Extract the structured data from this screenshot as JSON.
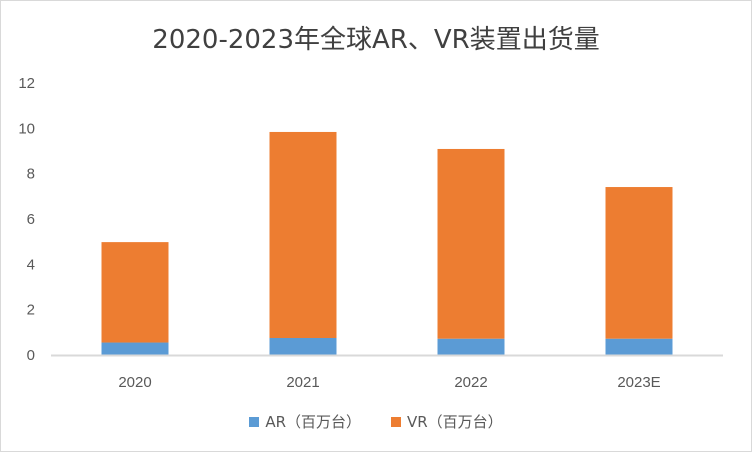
{
  "chart_data": {
    "type": "bar",
    "stacked": true,
    "title": "2020-2023年全球AR、VR装置出货量",
    "categories": [
      "2020",
      "2021",
      "2022",
      "2023E"
    ],
    "series": [
      {
        "name": "AR（百万台）",
        "values": [
          0.55,
          0.75,
          0.72,
          0.72
        ],
        "color": "#5b9bd5"
      },
      {
        "name": "VR（百万台）",
        "values": [
          4.43,
          9.09,
          8.37,
          6.69
        ],
        "color": "#ed7d31"
      }
    ],
    "yticks": [
      "0",
      "2",
      "4",
      "6",
      "8",
      "10",
      "12"
    ],
    "ylim": [
      0,
      12
    ],
    "xlabel": "",
    "ylabel": "",
    "grid": false,
    "legend": "bottom"
  }
}
